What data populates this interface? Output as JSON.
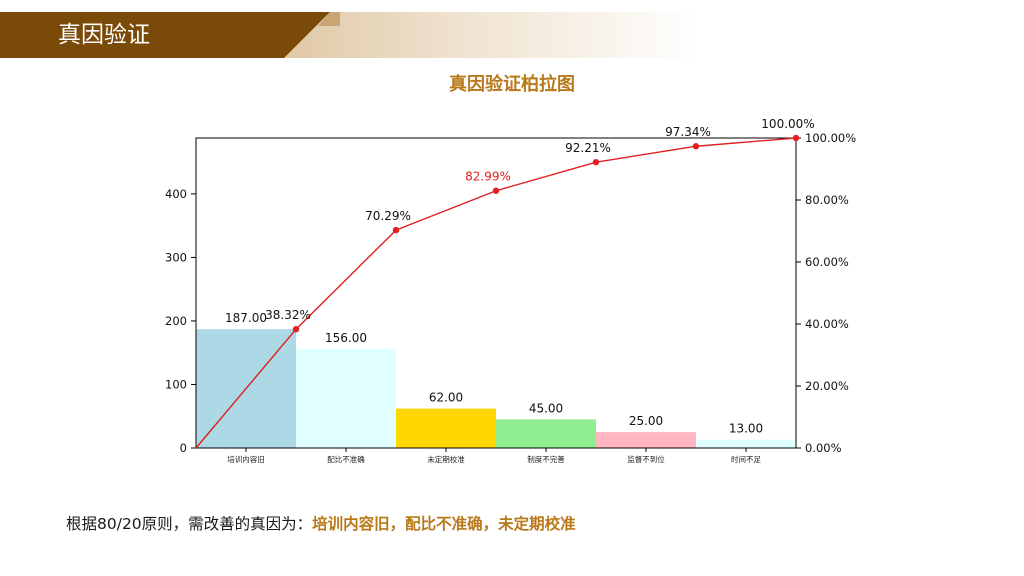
{
  "header": {
    "title": "真因验证"
  },
  "colors": {
    "brand_brown": "#7a4a08",
    "accent_gold": "#b8791a",
    "line_red": "#e02020"
  },
  "chart_data": {
    "type": "pareto",
    "title": "真因验证柏拉图",
    "categories": [
      "培训内容旧",
      "配比不准确",
      "未定期校准",
      "制度不完善",
      "监督不到位",
      "时间不足"
    ],
    "values": [
      187,
      156,
      62,
      45,
      25,
      13
    ],
    "value_labels": [
      "187.00",
      "156.00",
      "62.00",
      "45.00",
      "25.00",
      "13.00"
    ],
    "bar_colors": [
      "#add8e6",
      "#e0ffff",
      "#ffd700",
      "#90ee90",
      "#ffb6c1",
      "#e0ffff"
    ],
    "cumulative_percent": [
      38.32,
      70.29,
      82.99,
      92.21,
      97.34,
      100.0
    ],
    "cumulative_labels": [
      "38.32%",
      "70.29%",
      "82.99%",
      "92.21%",
      "97.34%",
      "100.00%"
    ],
    "highlight_label_index": 2,
    "left_axis": {
      "ylim": [
        0,
        488
      ],
      "ticks": [
        0,
        100,
        200,
        300,
        400
      ]
    },
    "right_axis": {
      "ylim": [
        0,
        100
      ],
      "ticks": [
        "0.00%",
        "20.00%",
        "40.00%",
        "60.00%",
        "80.00%",
        "100.00%"
      ]
    },
    "grid": false
  },
  "conclusion": {
    "prefix": "根据80/20原则，需改善的真因为：",
    "highlight": "培训内容旧，配比不准确，未定期校准"
  }
}
